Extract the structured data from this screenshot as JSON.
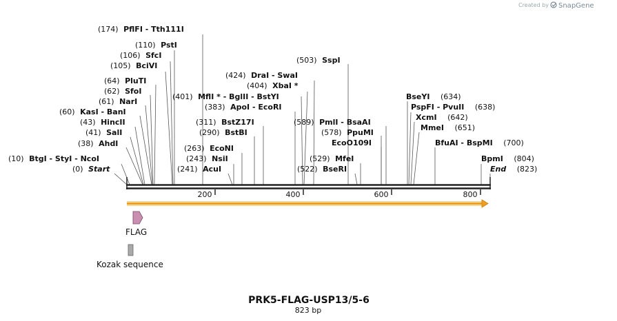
{
  "header": {
    "credit": "Created by",
    "brand": "SnapGene"
  },
  "map": {
    "length_bp": 823,
    "ticks": [
      "200",
      "400",
      "600",
      "800"
    ],
    "title": "PRK5-FLAG-USP13/5-6",
    "subtitle": "823 bp"
  },
  "sites": [
    {
      "pos": "(174)",
      "name": "PflFI  -  Tth111I"
    },
    {
      "pos": "(110)",
      "name": "PstI"
    },
    {
      "pos": "(106)",
      "name": "SfcI"
    },
    {
      "pos": "(105)",
      "name": "BciVI"
    },
    {
      "pos": "(64)",
      "name": "PluTI"
    },
    {
      "pos": "(62)",
      "name": "SfoI"
    },
    {
      "pos": "(61)",
      "name": "NarI"
    },
    {
      "pos": "(60)",
      "name": "KasI  -  BanI"
    },
    {
      "pos": "(43)",
      "name": "HincII"
    },
    {
      "pos": "(41)",
      "name": "SalI"
    },
    {
      "pos": "(38)",
      "name": "AhdI"
    },
    {
      "pos": "(10)",
      "name": "BtgI  -  StyI  -  NcoI"
    },
    {
      "pos": "(0)",
      "name": "Start"
    },
    {
      "pos": "(401)",
      "name": "MflI * - BglII  - BstYI"
    },
    {
      "pos": "(424)",
      "name": "DraI  - SwaI"
    },
    {
      "pos": "(404)",
      "name": "XbaI *"
    },
    {
      "pos": "(383)",
      "name": "ApoI  - EcoRI"
    },
    {
      "pos": "(311)",
      "name": "BstZ17I"
    },
    {
      "pos": "(290)",
      "name": "BstBI"
    },
    {
      "pos": "(263)",
      "name": "EcoNI"
    },
    {
      "pos": "(243)",
      "name": "NsiI"
    },
    {
      "pos": "(241)",
      "name": "AcuI"
    },
    {
      "pos": "(503)",
      "name": "SspI"
    },
    {
      "pos": "(589)",
      "name": "PmlI  - BsaAI"
    },
    {
      "pos": "(578)",
      "name": "PpuMI"
    },
    {
      "pos": "",
      "name": "EcoO109I"
    },
    {
      "pos": "(529)",
      "name": "MfeI"
    },
    {
      "pos": "(522)",
      "name": "BseRI"
    },
    {
      "pos": "(634)",
      "name": "BseYI"
    },
    {
      "pos": "(638)",
      "name": "PspFI  - PvuII"
    },
    {
      "pos": "(642)",
      "name": "XcmI"
    },
    {
      "pos": "(651)",
      "name": "MmeI"
    },
    {
      "pos": "(700)",
      "name": "BfuAI  - BspMI"
    },
    {
      "pos": "(804)",
      "name": "BpmI"
    },
    {
      "pos": "(823)",
      "name": "End"
    }
  ],
  "features": {
    "flag": {
      "label": "FLAG",
      "color": "#c98fb0"
    },
    "kozak": {
      "label": "Kozak sequence",
      "color": "#a9a9a9"
    },
    "orf_color": "#f5b041",
    "orf_stroke": "#c87d10"
  }
}
